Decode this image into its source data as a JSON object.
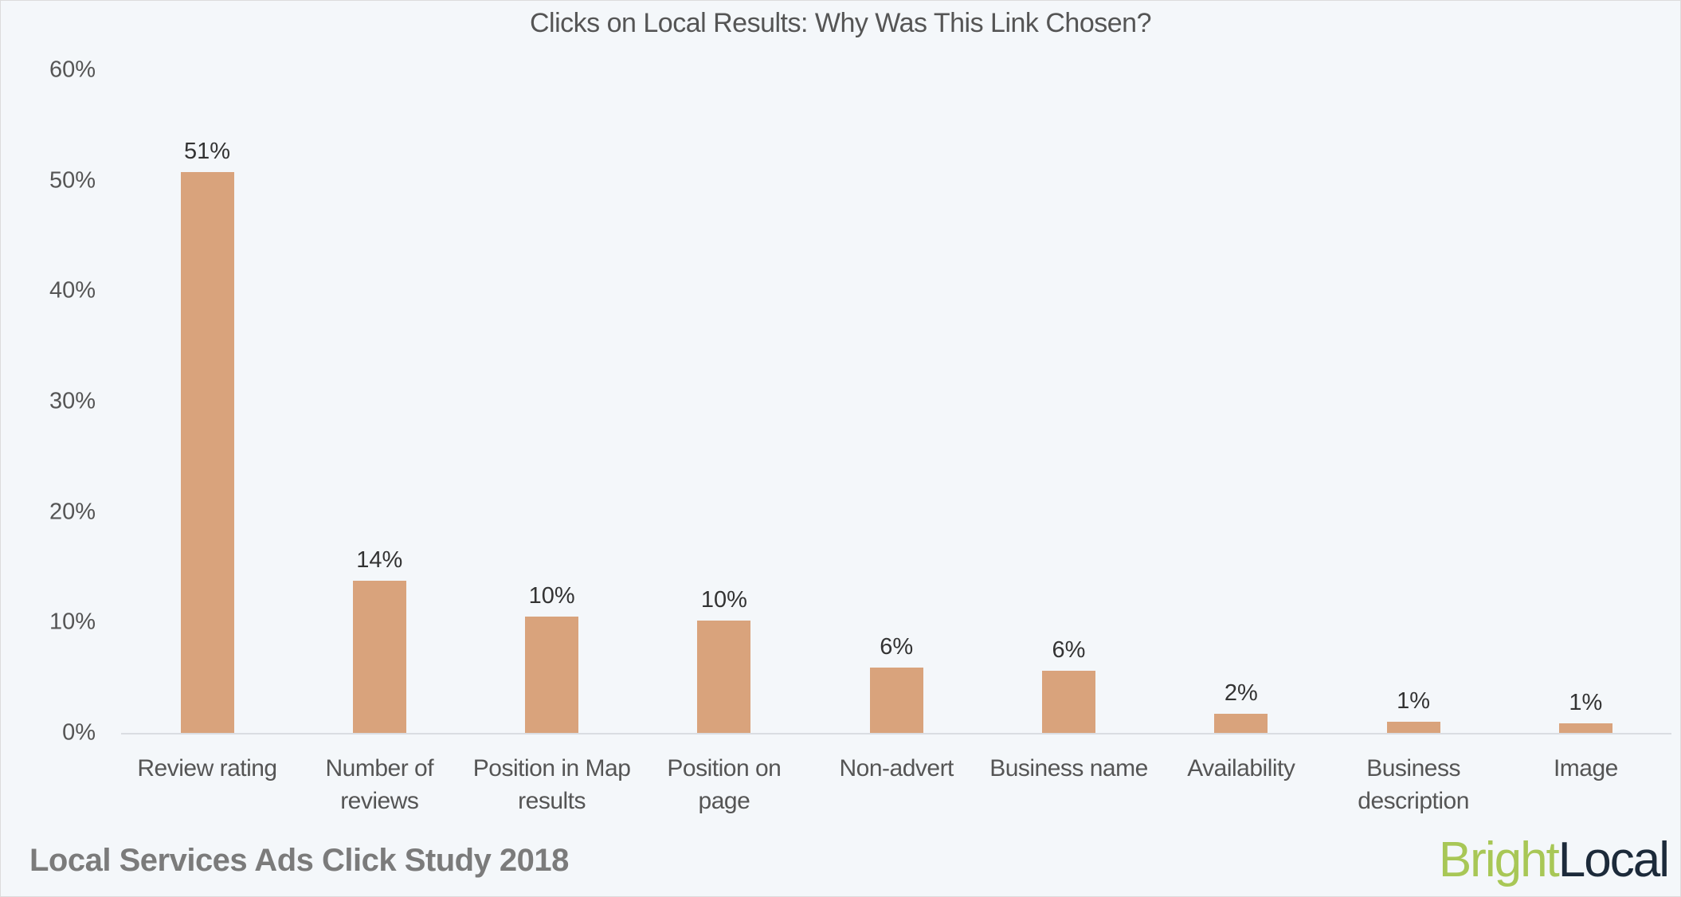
{
  "chart_data": {
    "type": "bar",
    "title": "Clicks on Local Results: Why Was This Link Chosen?",
    "xlabel": "",
    "ylabel": "",
    "ylim": [
      0,
      60
    ],
    "yticks": [
      "0%",
      "10%",
      "20%",
      "30%",
      "40%",
      "50%",
      "60%"
    ],
    "grid": false,
    "legend": null,
    "categories": [
      "Review rating",
      "Number of reviews",
      "Position in Map results",
      "Position on page",
      "Non-advert",
      "Business name",
      "Availability",
      "Business description",
      "Image"
    ],
    "category_lines": [
      [
        "Review rating"
      ],
      [
        "Number of",
        "reviews"
      ],
      [
        "Position in Map",
        "results"
      ],
      [
        "Position on",
        "page"
      ],
      [
        "Non-advert"
      ],
      [
        "Business name"
      ],
      [
        "Availability"
      ],
      [
        "Business",
        "description"
      ],
      [
        "Image"
      ]
    ],
    "values": [
      50.8,
      13.8,
      10.5,
      10.2,
      5.9,
      5.6,
      1.7,
      1.0,
      0.9
    ],
    "data_labels": [
      "51%",
      "14%",
      "10%",
      "10%",
      "6%",
      "6%",
      "2%",
      "1%",
      "1%"
    ],
    "bar_color": "#d9a37c"
  },
  "footer": {
    "text": "Local Services Ads Click Study 2018"
  },
  "logo": {
    "part1": "Bright",
    "part2": "Local",
    "color1": "#a8c756",
    "color2": "#1c2a3a"
  }
}
